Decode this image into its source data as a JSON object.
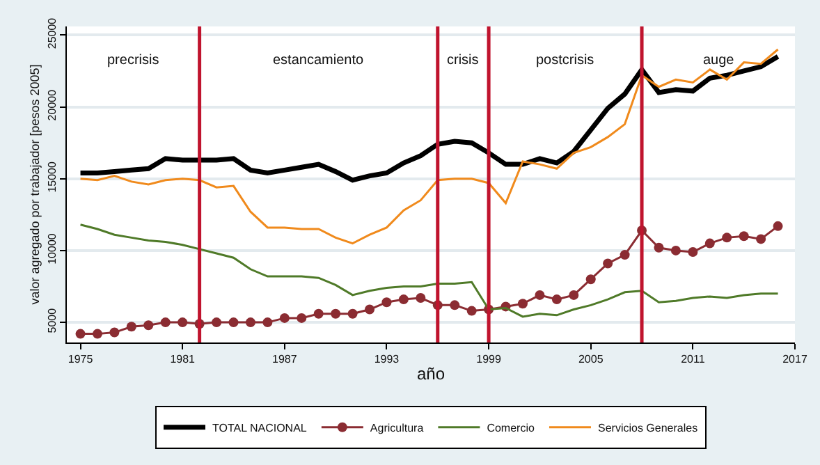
{
  "chart_data": {
    "type": "line",
    "xlabel": "año",
    "ylabel": "valor agregado por trabajador [pesos 2005]",
    "x": [
      1975,
      1976,
      1977,
      1978,
      1979,
      1980,
      1981,
      1982,
      1983,
      1984,
      1985,
      1986,
      1987,
      1988,
      1989,
      1990,
      1991,
      1992,
      1993,
      1994,
      1995,
      1996,
      1997,
      1998,
      1999,
      2000,
      2001,
      2002,
      2003,
      2004,
      2005,
      2006,
      2007,
      2008,
      2009,
      2010,
      2011,
      2012,
      2013,
      2014,
      2015,
      2016
    ],
    "series": [
      {
        "name": "TOTAL NACIONAL",
        "color": "#000000",
        "values": [
          15400,
          15400,
          15500,
          15600,
          15700,
          16400,
          16300,
          16300,
          16300,
          16400,
          15600,
          15400,
          15600,
          15800,
          16000,
          15500,
          14900,
          15200,
          15400,
          16100,
          16600,
          17400,
          17600,
          17500,
          16800,
          16000,
          16000,
          16400,
          16100,
          16900,
          18400,
          19900,
          20900,
          22600,
          21000,
          21200,
          21100,
          22000,
          22200,
          22500,
          22800,
          23500
        ]
      },
      {
        "name": "Agricultura",
        "color": "#8b2c32",
        "marker": "circle",
        "values": [
          4200,
          4200,
          4300,
          4700,
          4800,
          5000,
          5000,
          4900,
          5000,
          5000,
          5000,
          5000,
          5300,
          5300,
          5600,
          5600,
          5600,
          5900,
          6400,
          6600,
          6700,
          6200,
          6200,
          5800,
          5900,
          6100,
          6300,
          6900,
          6600,
          6900,
          8000,
          9100,
          9700,
          11400,
          10200,
          10000,
          9900,
          10500,
          10900,
          11000,
          10800,
          11700
        ]
      },
      {
        "name": "Comercio",
        "color": "#4f7a28",
        "values": [
          11800,
          11500,
          11100,
          10900,
          10700,
          10600,
          10400,
          10100,
          9800,
          9500,
          8700,
          8200,
          8200,
          8200,
          8100,
          7600,
          6900,
          7200,
          7400,
          7500,
          7500,
          7700,
          7700,
          7800,
          5900,
          6000,
          5400,
          5600,
          5500,
          5900,
          6200,
          6600,
          7100,
          7200,
          6400,
          6500,
          6700,
          6800,
          6700,
          6900,
          7000,
          7000
        ]
      },
      {
        "name": "Servicios Generales",
        "color": "#f08a1c",
        "values": [
          15000,
          14900,
          15200,
          14800,
          14600,
          14900,
          15000,
          14900,
          14400,
          14500,
          12700,
          11600,
          11600,
          11500,
          11500,
          10900,
          10500,
          11100,
          11600,
          12800,
          13500,
          14900,
          15000,
          15000,
          14700,
          13300,
          16200,
          16000,
          15700,
          16800,
          17200,
          17900,
          18800,
          22200,
          21400,
          21900,
          21700,
          22600,
          21900,
          23100,
          23000,
          24000
        ]
      }
    ],
    "xlim": [
      1974.2,
      2017
    ],
    "xticks": [
      1975,
      1981,
      1987,
      1993,
      1999,
      2005,
      2011,
      2017
    ],
    "ylim": [
      3600,
      25600
    ],
    "yticks": [
      5000,
      10000,
      15000,
      20000,
      25000
    ],
    "grid": "y",
    "legend": "bottom",
    "ref_lines": [
      {
        "axis": "x",
        "value": 1982,
        "color": "#c0142e"
      },
      {
        "axis": "x",
        "value": 1996,
        "color": "#c0142e"
      },
      {
        "axis": "x",
        "value": 1999,
        "color": "#c0142e"
      },
      {
        "axis": "x",
        "value": 2008,
        "color": "#c0142e"
      }
    ],
    "annotations": [
      "precrisis",
      "estancamiento",
      "crisis",
      "postcrisis",
      "auge"
    ]
  }
}
